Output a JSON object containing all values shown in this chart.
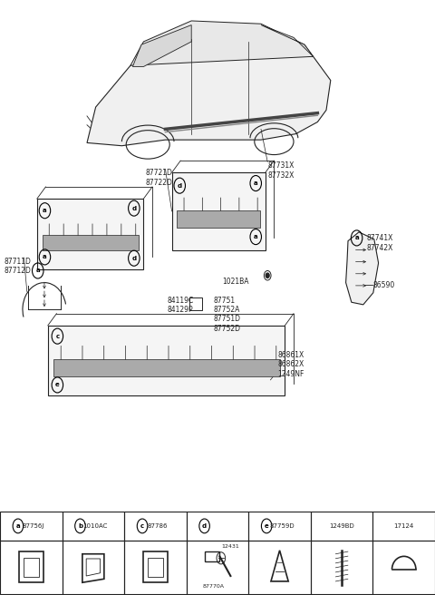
{
  "bg_color": "#ffffff",
  "line_color": "#222222",
  "headers": [
    {
      "label": "a",
      "code": "87756J"
    },
    {
      "label": "b",
      "code": "1010AC"
    },
    {
      "label": "c",
      "code": "87786"
    },
    {
      "label": "d",
      "code": ""
    },
    {
      "label": "e",
      "code": "87759D"
    },
    {
      "label": "",
      "code": "1249BD"
    },
    {
      "label": "",
      "code": "17124"
    }
  ],
  "car_label": "87731X\n87732X",
  "panel_labels": {
    "top_mid": "87721D\n87722D",
    "mid_ref": "1021BA",
    "mid_parts": "87751\n87752A\n87751D\n87752D",
    "mid_parts2": "84119C\n84129P",
    "right_fender": "87741X\n87742X",
    "right_line": "86590",
    "left_fender": "87711D\n87712D",
    "bottom": "86861X\n86862X",
    "bottom2": "1249NF"
  },
  "icon_labels": [
    "12431",
    "87770A"
  ]
}
